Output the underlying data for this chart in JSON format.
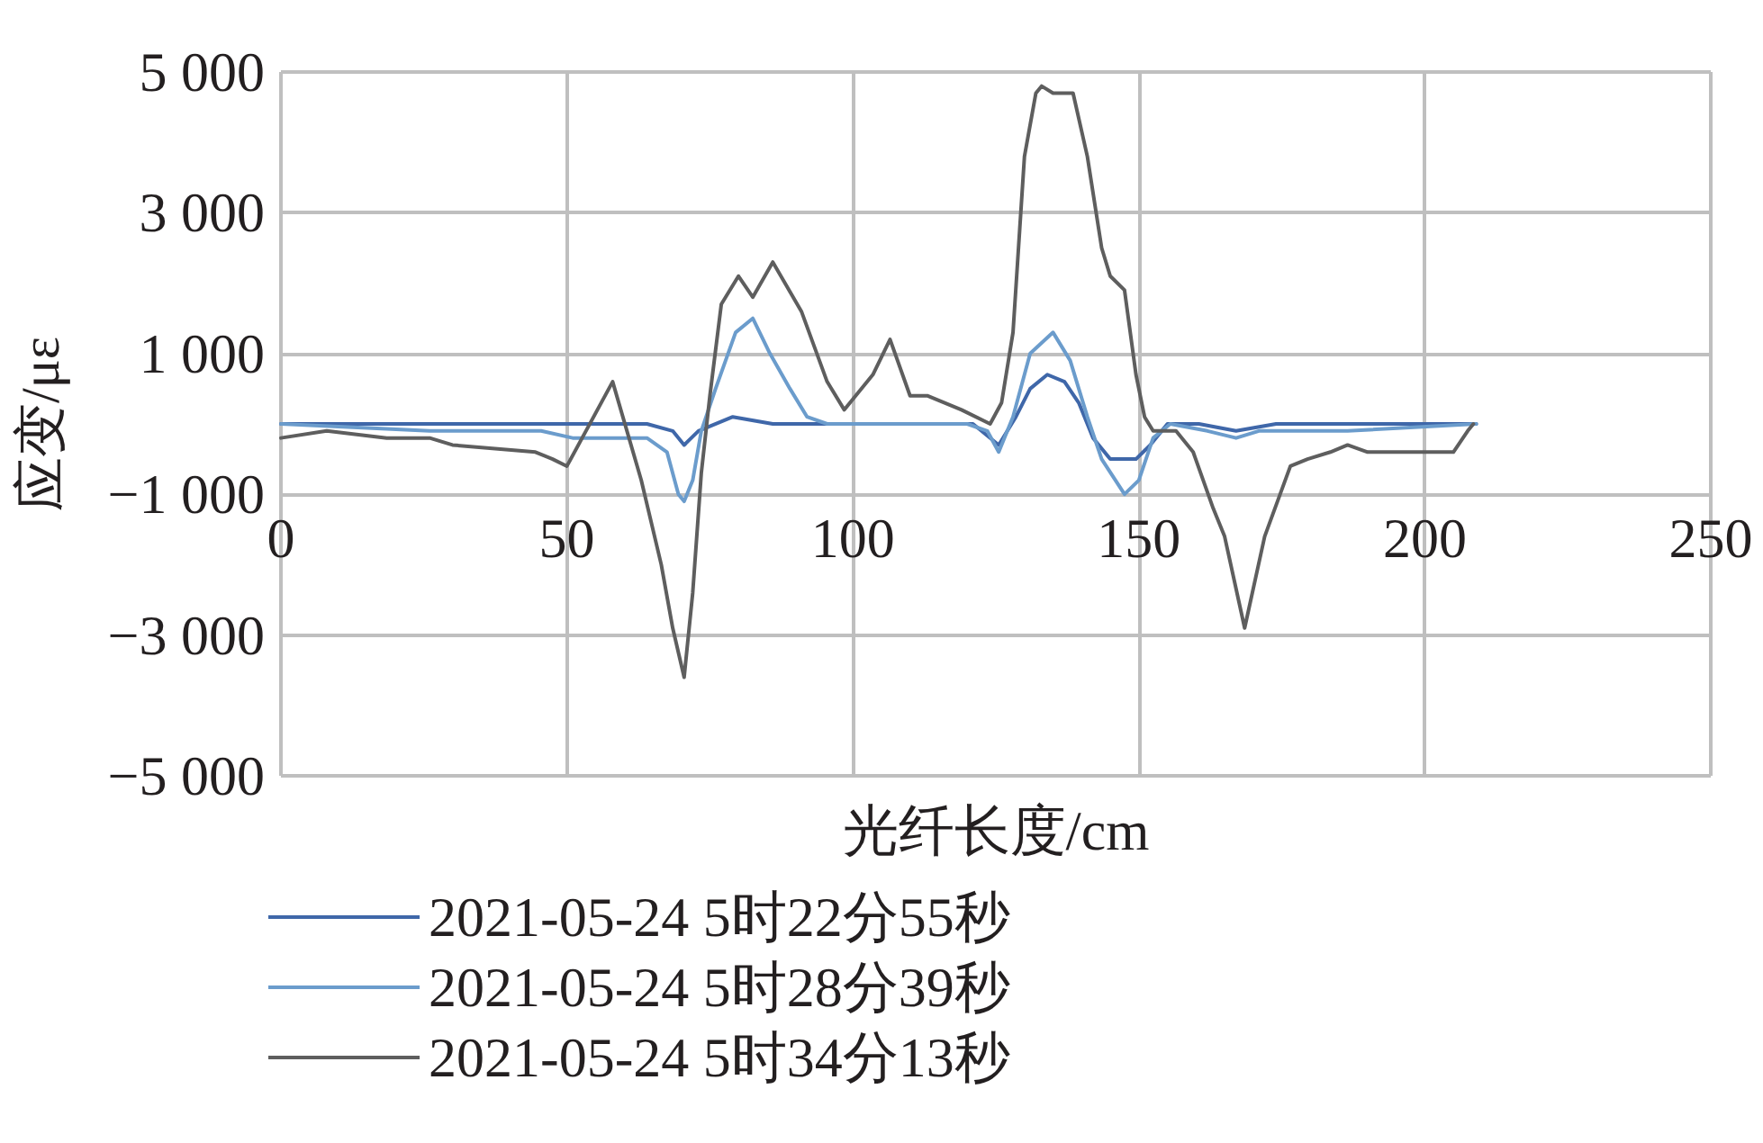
{
  "chart_data": {
    "type": "line",
    "xlabel": "光纤长度/cm",
    "ylabel": "应变/με",
    "xlim": [
      0,
      250
    ],
    "xticks": [
      0,
      50,
      100,
      150,
      200,
      250
    ],
    "ylim": [
      -5000,
      5000
    ],
    "yticks": [
      {
        "value": -5000,
        "label": "−5 000"
      },
      {
        "value": -3000,
        "label": "−3 000"
      },
      {
        "value": -1000,
        "label": "−1 000"
      },
      {
        "value": 1000,
        "label": "1 000"
      },
      {
        "value": 3000,
        "label": "3 000"
      },
      {
        "value": 5000,
        "label": "5 000"
      }
    ],
    "grid": true,
    "legend": "bottom",
    "marker": "none",
    "line_style": "solid",
    "series": [
      {
        "name": "2021-05-24 5时22分55秒",
        "color": "#3f67a9",
        "x": [
          0,
          30,
          64,
          68.5,
          70.5,
          73,
          79,
          86,
          97,
          110,
          121,
          125.5,
          128.5,
          131,
          134,
          137,
          139.5,
          142,
          145,
          149.5,
          152,
          155,
          160.5,
          167,
          174,
          190,
          209
        ],
        "values": [
          0,
          0,
          0,
          -100,
          -300,
          -100,
          100,
          0,
          0,
          0,
          0,
          -300,
          100,
          500,
          700,
          600,
          300,
          -200,
          -500,
          -500,
          -300,
          0,
          0,
          -100,
          0,
          0,
          0
        ]
      },
      {
        "name": "2021-05-24 5时28分39秒",
        "color": "#6b9ccc",
        "x": [
          0,
          26,
          45.5,
          51,
          58,
          64,
          67.5,
          69.5,
          70.5,
          72,
          73.5,
          76,
          79.5,
          82.5,
          85.5,
          89,
          92,
          95.5,
          105,
          120,
          123.5,
          125.5,
          128,
          131,
          135,
          138,
          141,
          143.5,
          147.5,
          150,
          152.5,
          155.5,
          162,
          167,
          171,
          186.5,
          209
        ],
        "values": [
          0,
          -100,
          -100,
          -200,
          -200,
          -200,
          -400,
          -1000,
          -1100,
          -800,
          -100,
          500,
          1300,
          1500,
          1000,
          500,
          100,
          0,
          0,
          0,
          -100,
          -400,
          100,
          1000,
          1300,
          900,
          100,
          -500,
          -1000,
          -800,
          -200,
          0,
          -100,
          -200,
          -100,
          -100,
          0
        ]
      },
      {
        "name": "2021-05-24 5时34分13秒",
        "color": "#5e5e5e",
        "x": [
          0,
          8,
          18.5,
          26,
          30,
          44.5,
          47.5,
          50,
          58,
          63,
          66.5,
          68.5,
          70.5,
          72,
          73.5,
          75,
          77,
          80,
          82.5,
          86,
          91,
          95.5,
          98.5,
          103.5,
          106.5,
          110,
          113,
          119,
          124,
          126,
          128,
          130,
          132,
          133,
          135,
          137,
          138.5,
          141,
          143.5,
          145,
          147.5,
          149.5,
          151,
          152.5,
          156.5,
          159.5,
          163,
          165,
          168.5,
          172,
          176.5,
          179.5,
          183.5,
          186.5,
          190,
          194,
          199,
          205,
          207.5,
          208.5
        ],
        "values": [
          -200,
          -100,
          -200,
          -200,
          -300,
          -400,
          -500,
          -600,
          600,
          -800,
          -2000,
          -2900,
          -3600,
          -2400,
          -700,
          400,
          1700,
          2100,
          1800,
          2300,
          1600,
          600,
          200,
          700,
          1200,
          400,
          400,
          200,
          0,
          300,
          1300,
          3800,
          4700,
          4800,
          4700,
          4700,
          4700,
          3800,
          2500,
          2100,
          1900,
          700,
          100,
          -100,
          -100,
          -400,
          -1200,
          -1600,
          -2900,
          -1600,
          -600,
          -500,
          -400,
          -300,
          -400,
          -400,
          -400,
          -400,
          -100,
          0
        ]
      }
    ]
  }
}
